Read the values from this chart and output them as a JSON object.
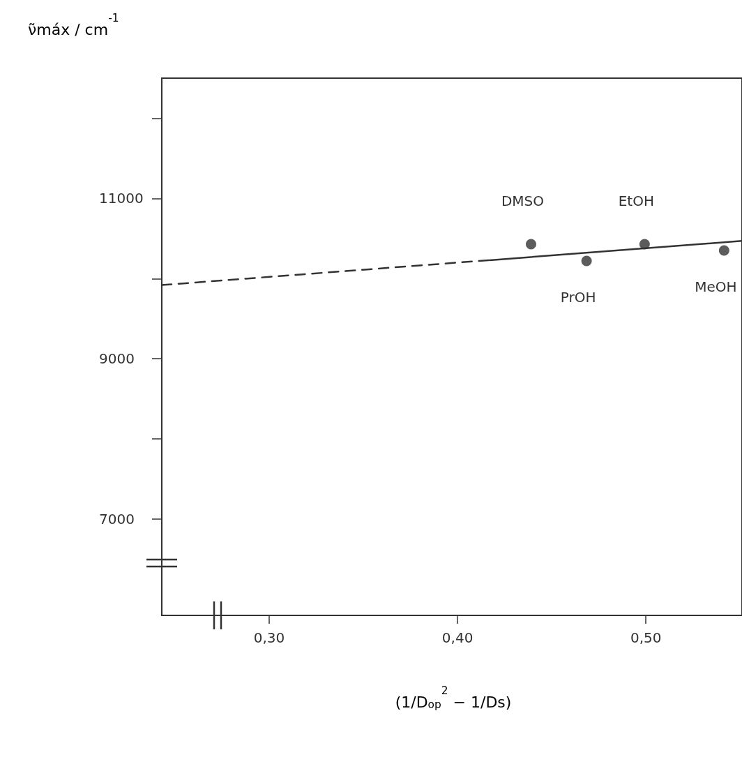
{
  "chart_data": {
    "type": "scatter",
    "xlabel": "(1/D$_{op}$$^{2}$ − 1/Ds)",
    "ylabel": "ν̃máx / cm$^{-1}$",
    "xlim": [
      0.243,
      0.551
    ],
    "xticks": [
      {
        "value": 0.3,
        "label": "0,30"
      },
      {
        "value": 0.4,
        "label": "0,40"
      },
      {
        "value": 0.5,
        "label": "0,50"
      }
    ],
    "ylim": [
      5800,
      12500
    ],
    "yticks": [
      {
        "value": 7000,
        "label": "7000"
      },
      {
        "value": 8000,
        "label": null
      },
      {
        "value": 9000,
        "label": "9000"
      },
      {
        "value": 10000,
        "label": null
      },
      {
        "value": 11000,
        "label": "11000"
      },
      {
        "value": 12000,
        "label": null
      }
    ],
    "series": [
      {
        "x": [
          0.439,
          0.4685,
          0.4993,
          0.5415
        ],
        "values": [
          10430,
          10220,
          10430,
          10350
        ],
        "color": "#333333",
        "marker": "circle"
      },
      {
        "type": "line",
        "x": [
          0.243,
          0.417
        ],
        "values": [
          9920,
          10230
        ],
        "color": "#333333",
        "marker": "none",
        "line_style": "dashed"
      },
      {
        "type": "line",
        "x": [
          0.417,
          0.551
        ],
        "values": [
          10230,
          10470
        ],
        "color": "#333333",
        "marker": "none",
        "line_style": "solid"
      }
    ],
    "annotations": [
      {
        "text": "DMSO",
        "x": 0.439,
        "y": 10430
      },
      {
        "text": "PrOH",
        "x": 0.4685,
        "y": 10220
      },
      {
        "text": "EtOH",
        "x": 0.4993,
        "y": 10430
      },
      {
        "text": "MeOH",
        "x": 0.5415,
        "y": 10350
      }
    ]
  }
}
